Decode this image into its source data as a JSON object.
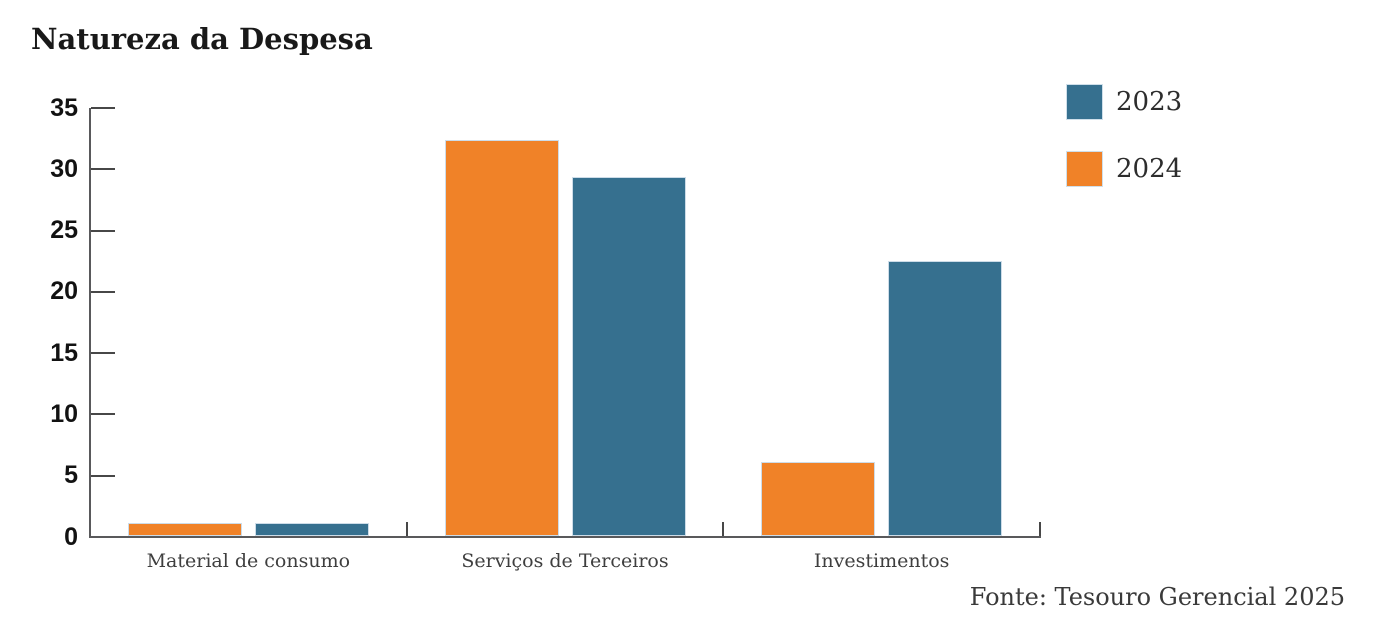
{
  "title": "Natureza da Despesa",
  "footer": "Fonte: Tesouro Gerencial 2025",
  "chart_data": {
    "type": "bar",
    "title": "Natureza da Despesa",
    "categories": [
      "Material de consumo",
      "Serviços de Terceiros",
      "Investimentos"
    ],
    "series": [
      {
        "name": "2023",
        "color": "#36708F",
        "values": [
          1.1,
          29.3,
          22.4
        ]
      },
      {
        "name": "2024",
        "color": "#F08228",
        "values": [
          1.1,
          32.3,
          6.0
        ]
      }
    ],
    "bar_order": [
      "2024",
      "2023"
    ],
    "xlabel": "",
    "ylabel": "",
    "ylim": [
      0,
      35
    ],
    "yticks": [
      0,
      5,
      10,
      15,
      20,
      25,
      30,
      35
    ],
    "grid": false,
    "legend_position": "top-right",
    "category_divider_ticks": true,
    "source": "Fonte: Tesouro Gerencial 2025"
  },
  "colors": {
    "series_2023": "#36708F",
    "series_2024": "#F08228",
    "axis": "#59595b",
    "tick": "#474747",
    "bar_edge": "#cddce8",
    "title_text": "#191919",
    "tick_label_text": "#121212",
    "category_label_text": "#3f3f3f",
    "source_text": "#3a3a3a",
    "background": "#ffffff"
  }
}
